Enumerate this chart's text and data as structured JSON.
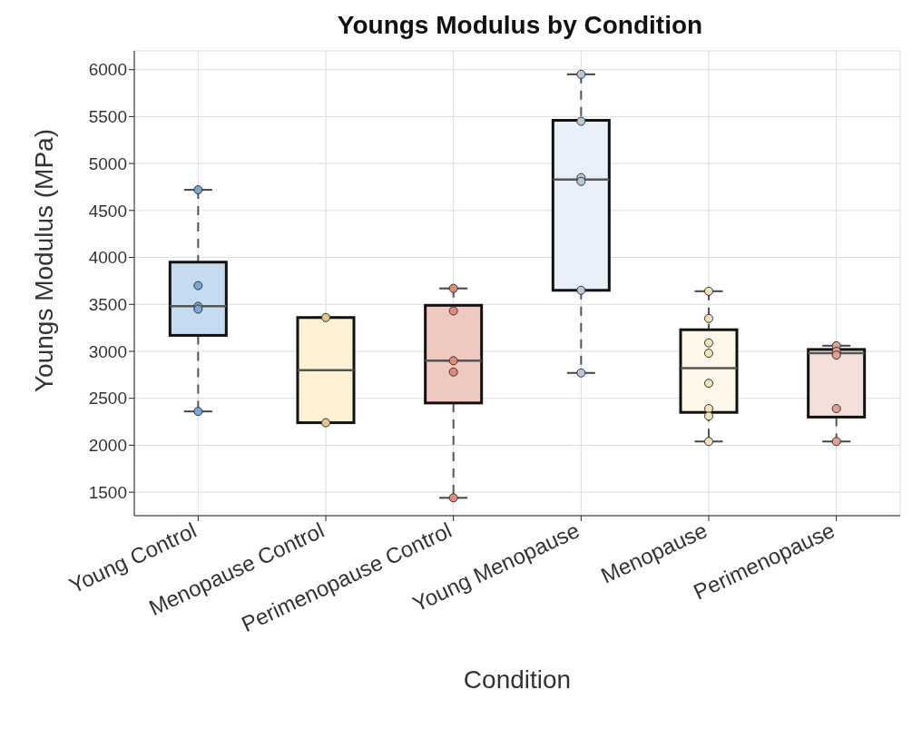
{
  "chart_data": {
    "type": "box",
    "title": "Youngs Modulus by Condition",
    "xlabel": "Condition",
    "ylabel": "Youngs Modulus (MPa)",
    "categories": [
      "Young Control",
      "Menopause Control",
      "Perimenopause Control",
      "Young Menopause",
      "Menopause",
      "Perimenopause"
    ],
    "colors": [
      "#c5dbf0",
      "#fdf2d4",
      "#efc8c0",
      "#e9f0f9",
      "#fdf7e8",
      "#f3e0da"
    ],
    "boxes": [
      {
        "low": 2360,
        "q1": 3170,
        "median": 3480,
        "q3": 3950,
        "high": 4720
      },
      {
        "low": 2240,
        "q1": 2240,
        "median": 2800,
        "q3": 3360,
        "high": 3360
      },
      {
        "low": 1440,
        "q1": 2450,
        "median": 2900,
        "q3": 3490,
        "high": 3670
      },
      {
        "low": 2770,
        "q1": 3650,
        "median": 4830,
        "q3": 5460,
        "high": 5950
      },
      {
        "low": 2040,
        "q1": 2350,
        "median": 2820,
        "q3": 3230,
        "high": 3640
      },
      {
        "low": 2040,
        "q1": 2300,
        "median": 2980,
        "q3": 3020,
        "high": 3060
      }
    ],
    "series": [
      {
        "type": "scatter",
        "x": [
          "Young Control",
          "Young Control",
          "Young Control",
          "Young Control",
          "Young Control",
          "Menopause Control",
          "Menopause Control",
          "Perimenopause Control",
          "Perimenopause Control",
          "Perimenopause Control",
          "Perimenopause Control",
          "Perimenopause Control",
          "Young Menopause",
          "Young Menopause",
          "Young Menopause",
          "Young Menopause",
          "Young Menopause",
          "Young Menopause",
          "Menopause",
          "Menopause",
          "Menopause",
          "Menopause",
          "Menopause",
          "Menopause",
          "Menopause",
          "Menopause",
          "Perimenopause",
          "Perimenopause",
          "Perimenopause",
          "Perimenopause",
          "Perimenopause"
        ],
        "values": [
          4720,
          3700,
          3480,
          3450,
          2360,
          3360,
          2240,
          3670,
          3430,
          2900,
          2780,
          1440,
          5950,
          5450,
          4850,
          4810,
          3650,
          2770,
          3640,
          3350,
          3090,
          2980,
          2660,
          2390,
          2310,
          2040,
          3060,
          3000,
          2960,
          2390,
          2040
        ],
        "colors": [
          "#7aa6d6",
          "#7aa6d6",
          "#7aa6d6",
          "#7aa6d6",
          "#7aa6d6",
          "#e0c889",
          "#e0c889",
          "#e08a78",
          "#e08a78",
          "#e08a78",
          "#e08a78",
          "#e08a78",
          "#b8c8dc",
          "#b8c8dc",
          "#b8c8dc",
          "#b8c8dc",
          "#b8c8dc",
          "#b8c8dc",
          "#f3e4b5",
          "#f3e4b5",
          "#f3e4b5",
          "#f3e4b5",
          "#f3e4b5",
          "#f3e4b5",
          "#f3e4b5",
          "#f3e4b5",
          "#dea090",
          "#dea090",
          "#dea090",
          "#dea090",
          "#dea090"
        ],
        "marker": "circle"
      }
    ],
    "ylim": [
      1250,
      6200
    ],
    "yticks": [
      1500,
      2000,
      2500,
      3000,
      3500,
      4000,
      4500,
      5000,
      5500,
      6000
    ],
    "grid": true
  }
}
